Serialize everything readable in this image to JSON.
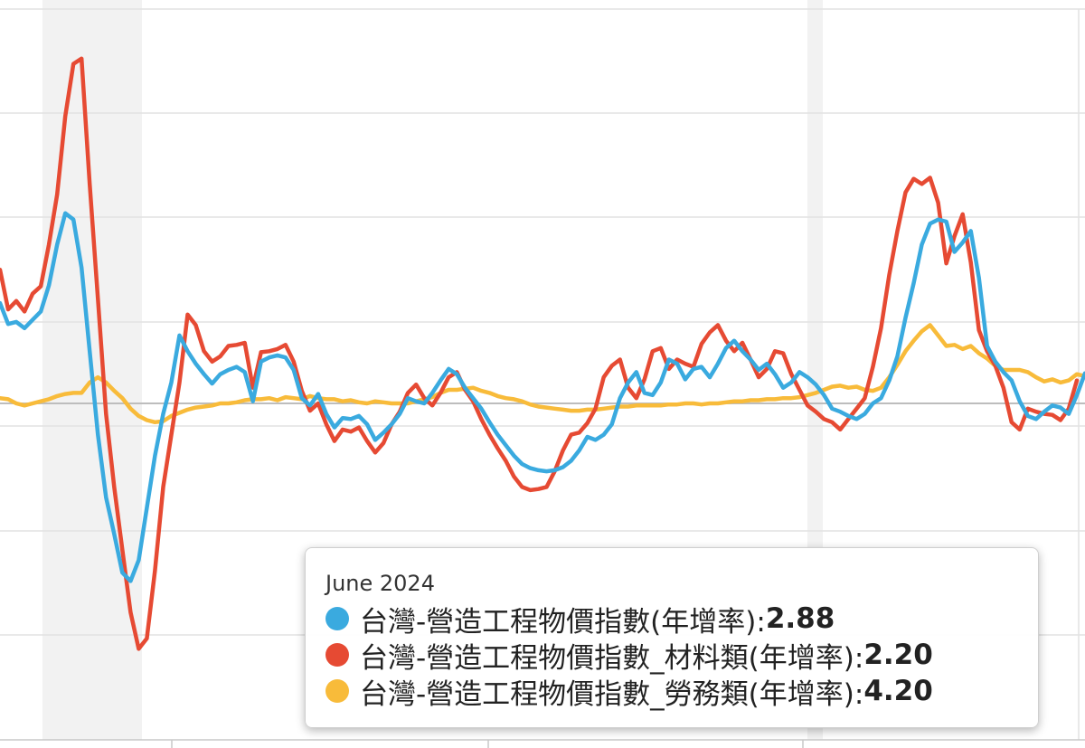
{
  "chart_data": {
    "type": "line",
    "grid": true,
    "recession_bands": true,
    "series": [
      {
        "name": "台灣-營造工程物價指數(年增率)",
        "color": "#3aaadf",
        "values": [
          9.6,
          7.6,
          7.8,
          7.2,
          8.0,
          8.8,
          11.3,
          15.2,
          18.2,
          17.6,
          13.0,
          5.0,
          -3.0,
          -9.0,
          -12.5,
          -16.2,
          -17.0,
          -15.0,
          -10.0,
          -5.0,
          -1.0,
          2.0,
          6.5,
          5.0,
          3.8,
          2.8,
          1.9,
          2.8,
          3.2,
          3.5,
          3.0,
          0.2,
          4.0,
          4.4,
          4.6,
          4.4,
          3.2,
          0.5,
          -0.2,
          0.9,
          -1.0,
          -2.3,
          -1.4,
          -1.5,
          -1.2,
          -2.0,
          -3.5,
          -2.8,
          -2.0,
          -1.0,
          0.5,
          0.2,
          0.0,
          1.0,
          2.2,
          3.3,
          2.8,
          1.5,
          0.5,
          -0.5,
          -1.8,
          -3.0,
          -4.0,
          -5.0,
          -5.8,
          -6.2,
          -6.4,
          -6.5,
          -6.4,
          -6.1,
          -5.5,
          -4.5,
          -3.2,
          -3.5,
          -3.0,
          -2.0,
          0.5,
          2.0,
          3.0,
          1.0,
          0.8,
          2.0,
          4.2,
          3.8,
          2.3,
          3.3,
          3.5,
          2.5,
          3.8,
          5.3,
          6.0,
          5.0,
          4.2,
          3.2,
          3.8,
          2.8,
          1.5,
          2.0,
          3.0,
          2.5,
          1.8,
          0.8,
          -0.5,
          -0.8,
          -1.2,
          -1.5,
          -1.0,
          0.0,
          0.5,
          2.2,
          4.5,
          8.2,
          11.5,
          15.2,
          17.2,
          17.6,
          17.4,
          14.5,
          15.4,
          16.5,
          12.0,
          5.5,
          4.0,
          3.0,
          2.2,
          0.2,
          -1.2,
          -1.5,
          -0.8,
          -0.2,
          -0.4,
          -1.0,
          0.8,
          2.88
        ]
      },
      {
        "name": "台灣-營造工程物價指數_材料類(年增率)",
        "color": "#e64a33",
        "values": [
          12.8,
          9.0,
          9.8,
          8.8,
          10.5,
          11.2,
          15.2,
          20.0,
          27.5,
          32.5,
          33.0,
          21.0,
          10.0,
          -1.0,
          -8.0,
          -14.0,
          -20.0,
          -23.5,
          -22.5,
          -16.0,
          -8.0,
          -3.0,
          2.0,
          8.5,
          7.5,
          5.0,
          4.0,
          4.5,
          5.5,
          5.6,
          5.8,
          1.5,
          4.9,
          5.0,
          5.2,
          5.6,
          4.0,
          1.2,
          -0.7,
          0.0,
          -2.0,
          -3.6,
          -2.5,
          -2.7,
          -2.3,
          -3.6,
          -4.7,
          -3.8,
          -2.0,
          -0.8,
          1.0,
          1.8,
          0.5,
          -0.2,
          1.0,
          2.5,
          3.0,
          1.3,
          0.2,
          -1.5,
          -3.0,
          -4.3,
          -5.5,
          -7.0,
          -8.0,
          -8.3,
          -8.2,
          -8.0,
          -6.5,
          -4.5,
          -3.0,
          -2.8,
          -1.9,
          -0.5,
          2.5,
          3.6,
          4.2,
          1.5,
          0.5,
          2.3,
          5.0,
          5.3,
          3.3,
          4.2,
          3.8,
          3.5,
          5.7,
          6.8,
          7.5,
          6.0,
          5.0,
          5.8,
          4.2,
          2.5,
          3.3,
          5.0,
          4.8,
          2.8,
          1.3,
          -0.2,
          -0.8,
          -1.5,
          -1.8,
          -2.5,
          -1.5,
          -0.5,
          0.5,
          3.5,
          7.2,
          12.3,
          16.5,
          20.2,
          21.5,
          21.0,
          21.6,
          19.2,
          13.4,
          16.0,
          18.1,
          13.5,
          7.0,
          5.0,
          3.6,
          1.5,
          -1.8,
          -2.5,
          -0.5,
          -0.8,
          -1.0,
          -1.1,
          -1.6,
          -0.5,
          2.2
        ]
      },
      {
        "name": "台灣-營造工程物價指數_勞務類(年增率)",
        "color": "#f8bb3a",
        "values": [
          0.5,
          0.4,
          0.0,
          -0.2,
          0.0,
          0.2,
          0.4,
          0.7,
          0.9,
          1.0,
          1.0,
          2.0,
          2.5,
          2.0,
          1.2,
          0.5,
          -0.5,
          -1.2,
          -1.6,
          -1.8,
          -1.7,
          -1.2,
          -0.9,
          -0.6,
          -0.4,
          -0.3,
          -0.2,
          0.0,
          0.0,
          0.1,
          0.3,
          0.4,
          0.4,
          0.5,
          0.3,
          0.6,
          0.5,
          0.4,
          0.7,
          0.5,
          0.4,
          0.4,
          0.2,
          0.3,
          0.1,
          0.0,
          0.2,
          0.1,
          0.0,
          0.0,
          0.0,
          0.2,
          0.4,
          0.6,
          1.0,
          1.3,
          1.3,
          1.4,
          1.5,
          1.2,
          1.0,
          0.7,
          0.5,
          0.4,
          0.2,
          -0.1,
          -0.3,
          -0.4,
          -0.5,
          -0.6,
          -0.7,
          -0.7,
          -0.6,
          -0.6,
          -0.5,
          -0.4,
          -0.3,
          -0.3,
          -0.2,
          -0.2,
          -0.2,
          -0.2,
          -0.1,
          -0.1,
          0.0,
          0.0,
          -0.1,
          0.0,
          0.0,
          0.1,
          0.2,
          0.2,
          0.3,
          0.3,
          0.4,
          0.4,
          0.5,
          0.5,
          0.6,
          0.8,
          1.0,
          1.3,
          1.6,
          1.7,
          1.5,
          1.6,
          1.3,
          1.2,
          1.5,
          2.5,
          3.7,
          5.0,
          6.0,
          6.9,
          7.5,
          6.5,
          5.5,
          5.6,
          5.2,
          5.5,
          4.8,
          4.3,
          3.6,
          3.2,
          3.2,
          3.2,
          3.0,
          2.5,
          2.1,
          2.3,
          2.0,
          2.2,
          2.8,
          2.6,
          3.2,
          4.2
        ]
      }
    ]
  },
  "tooltip": {
    "date": "June 2024",
    "items": [
      {
        "label": "台灣-營造工程物價指數(年增率): ",
        "value": "2.88",
        "color": "#3aaadf"
      },
      {
        "label": "台灣-營造工程物價指數_材料類(年增率): ",
        "value": "2.20",
        "color": "#e64a33"
      },
      {
        "label": "台灣-營造工程物價指數_勞務類(年增率): ",
        "value": "4.20",
        "color": "#f8bb3a"
      }
    ]
  }
}
